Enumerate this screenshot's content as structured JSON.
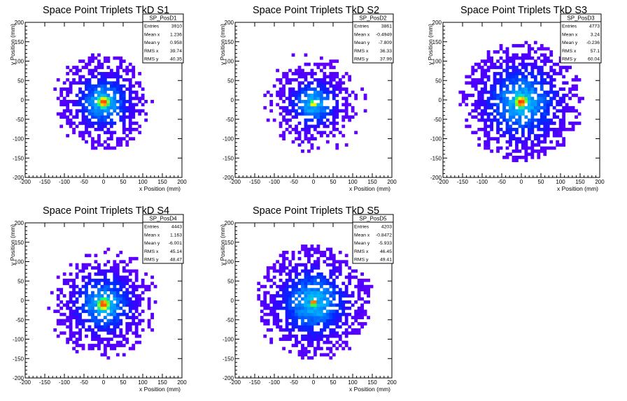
{
  "chart_data": [
    {
      "type": "heatmap",
      "title": "Space Point Triplets TkD S1",
      "xlabel": "x Position (mm)",
      "ylabel": "y Position (mm)",
      "xlim": [
        -200,
        200
      ],
      "ylim": [
        -200,
        200
      ],
      "xticks": [
        -200,
        -150,
        -100,
        -50,
        0,
        50,
        100,
        150,
        200
      ],
      "yticks": [
        -200,
        -150,
        -100,
        -50,
        0,
        50,
        100,
        150,
        200
      ],
      "colormap": "rainbow",
      "stats": {
        "name": "SP_PosD1",
        "rows": [
          {
            "label": "Entries",
            "value": "3910"
          },
          {
            "label": "Mean x",
            "value": "1.236"
          },
          {
            "label": "Mean y",
            "value": "0.958"
          },
          {
            "label": "RMS x",
            "value": "39.74"
          },
          {
            "label": "RMS y",
            "value": "40.35"
          }
        ]
      },
      "distribution": {
        "peak_x": 0,
        "peak_y": -5,
        "core_sigma": 14,
        "spread_radius": 110,
        "sparse_radius": 135
      }
    },
    {
      "type": "heatmap",
      "title": "Space Point Triplets TkD S2",
      "xlabel": "x Position (mm)",
      "ylabel": "y Position (mm)",
      "xlim": [
        -200,
        200
      ],
      "ylim": [
        -200,
        200
      ],
      "xticks": [
        -200,
        -150,
        -100,
        -50,
        0,
        50,
        100,
        150,
        200
      ],
      "yticks": [
        -200,
        -150,
        -100,
        -50,
        0,
        50,
        100,
        150,
        200
      ],
      "colormap": "rainbow",
      "stats": {
        "name": "SP_PosD2",
        "rows": [
          {
            "label": "Entries",
            "value": "3861"
          },
          {
            "label": "Mean x",
            "value": "-0.4949"
          },
          {
            "label": "Mean y",
            "value": "-7.809"
          },
          {
            "label": "RMS x",
            "value": "36.33"
          },
          {
            "label": "RMS y",
            "value": "37.99"
          }
        ]
      },
      "distribution": {
        "peak_x": 0,
        "peak_y": -10,
        "core_sigma": 7,
        "spread_radius": 95,
        "sparse_radius": 140
      }
    },
    {
      "type": "heatmap",
      "title": "Space Point Triplets TkD S3",
      "xlabel": "x Position (mm)",
      "ylabel": "y Position (mm)",
      "xlim": [
        -200,
        200
      ],
      "ylim": [
        -200,
        200
      ],
      "xticks": [
        -200,
        -150,
        -100,
        -50,
        0,
        50,
        100,
        150,
        200
      ],
      "yticks": [
        -200,
        -150,
        -100,
        -50,
        0,
        50,
        100,
        150,
        200
      ],
      "colormap": "rainbow",
      "stats": {
        "name": "SP_PosD3",
        "rows": [
          {
            "label": "Entries",
            "value": "4773"
          },
          {
            "label": "Mean x",
            "value": "3.24"
          },
          {
            "label": "Mean y",
            "value": "-0.236"
          },
          {
            "label": "RMS x",
            "value": "57.1"
          },
          {
            "label": "RMS y",
            "value": "60.04"
          }
        ]
      },
      "distribution": {
        "peak_x": 0,
        "peak_y": -5,
        "core_sigma": 15,
        "spread_radius": 150,
        "sparse_radius": 160
      }
    },
    {
      "type": "heatmap",
      "title": "Space Point Triplets TkD S4",
      "xlabel": "x Position (mm)",
      "ylabel": "y Position (mm)",
      "xlim": [
        -200,
        200
      ],
      "ylim": [
        -200,
        200
      ],
      "xticks": [
        -200,
        -150,
        -100,
        -50,
        0,
        50,
        100,
        150,
        200
      ],
      "yticks": [
        -200,
        -150,
        -100,
        -50,
        0,
        50,
        100,
        150,
        200
      ],
      "colormap": "rainbow",
      "stats": {
        "name": "SP_PosD4",
        "rows": [
          {
            "label": "Entries",
            "value": "4443"
          },
          {
            "label": "Mean x",
            "value": "1.163"
          },
          {
            "label": "Mean y",
            "value": "-6.001"
          },
          {
            "label": "RMS x",
            "value": "45.14"
          },
          {
            "label": "RMS y",
            "value": "48.47"
          }
        ]
      },
      "distribution": {
        "peak_x": 0,
        "peak_y": -10,
        "core_sigma": 14,
        "spread_radius": 120,
        "sparse_radius": 150
      }
    },
    {
      "type": "heatmap",
      "title": "Space Point Triplets TkD S5",
      "xlabel": "x Position (mm)",
      "ylabel": "y Position (mm)",
      "xlim": [
        -200,
        200
      ],
      "ylim": [
        -200,
        200
      ],
      "xticks": [
        -200,
        -150,
        -100,
        -50,
        0,
        50,
        100,
        150,
        200
      ],
      "yticks": [
        -200,
        -150,
        -100,
        -50,
        0,
        50,
        100,
        150,
        200
      ],
      "colormap": "rainbow",
      "stats": {
        "name": "SP_PosD5",
        "rows": [
          {
            "label": "Entries",
            "value": "4203"
          },
          {
            "label": "Mean x",
            "value": "-0.8472"
          },
          {
            "label": "Mean y",
            "value": "-5.933"
          },
          {
            "label": "RMS x",
            "value": "46.45"
          },
          {
            "label": "RMS y",
            "value": "49.41"
          }
        ]
      },
      "distribution": {
        "peak_x": 0,
        "peak_y": -5,
        "core_sigma": 8,
        "spread_radius": 140,
        "sparse_radius": 155
      }
    }
  ]
}
